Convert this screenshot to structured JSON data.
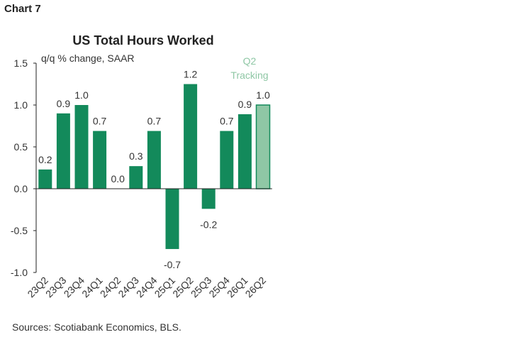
{
  "header": {
    "label": "Chart 7"
  },
  "footer": {
    "source": "Sources: Scotiabank Economics, BLS."
  },
  "colors": {
    "bar": "#138a5b",
    "tracking_bar": "#8fc7a5",
    "tracking_text": "#8fc7a5",
    "axis": "#222222"
  },
  "chart_data": {
    "type": "bar",
    "title": "US Total Hours Worked",
    "ylabel": "q/q % change, SAAR",
    "xlabel": "",
    "ylim": [
      -1.0,
      1.5
    ],
    "yticks": [
      "1.5",
      "1.0",
      "0.5",
      "0.0",
      "-0.5",
      "-1.0"
    ],
    "grid": false,
    "categories": [
      "23Q2",
      "23Q3",
      "23Q4",
      "24Q1",
      "24Q2",
      "24Q3",
      "24Q4",
      "25Q1",
      "25Q2",
      "25Q3",
      "25Q4",
      "26Q1",
      "26Q2"
    ],
    "values": [
      0.23,
      0.9,
      1.0,
      0.69,
      0.0,
      0.27,
      0.69,
      -0.72,
      1.25,
      -0.24,
      0.69,
      0.89,
      1.0
    ],
    "data_labels": [
      "0.2",
      "0.9",
      "1.0",
      "0.7",
      "0.0",
      "0.3",
      "0.7",
      "-0.7",
      "1.2",
      "-0.2",
      "0.7",
      "0.9",
      "1.0"
    ],
    "highlight_index": 12,
    "annotation": [
      "Q2",
      "Tracking"
    ]
  }
}
